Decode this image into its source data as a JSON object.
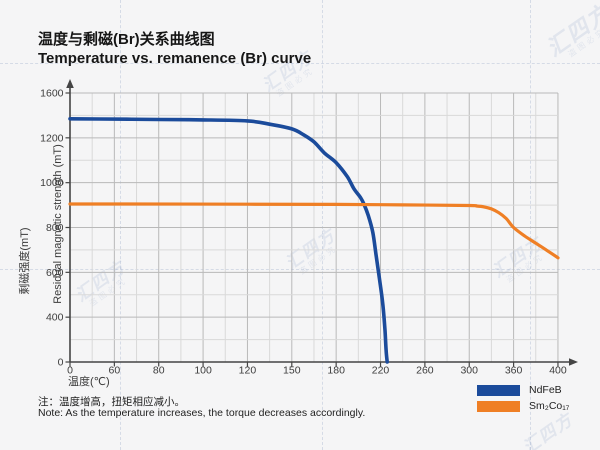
{
  "header": {
    "title_zh": "温度与剩磁(Br)关系曲线图",
    "title_en": "Temperature vs. remanence (Br) curve"
  },
  "watermark": {
    "logo": "汇四方",
    "small": "盗图必究"
  },
  "notes": {
    "zh": "注：温度增高，扭矩相应减小。",
    "en": "Note: As the temperature increases, the torque decreases accordingly."
  },
  "colors": {
    "ndfeb_blue": "#1b4b9b",
    "smco_orange": "#ef7f25",
    "axis": "#454545",
    "grid_major": "#b9b9b9",
    "grid_minor": "#d9d9d9",
    "tick_text": "#3d3d3d"
  },
  "legend": [
    {
      "label": "NdFeB",
      "color": "#1b4b9b"
    },
    {
      "label": "Sm₂Co₁₇",
      "color": "#ef7f25"
    }
  ],
  "chart_data": {
    "type": "line",
    "title": "温度与剩磁(Br)关系曲线图 / Temperature vs. remanence (Br) curve",
    "xlabel": "温度(℃)",
    "ylabel_zh": "剩磁强度(mT)",
    "ylabel_en": "Residual magnetic strength (mT)",
    "x_tick_labels": [
      "0",
      "60",
      "80",
      "100",
      "120",
      "150",
      "180",
      "220",
      "260",
      "300",
      "360",
      "400"
    ],
    "x_tick_values": [
      0,
      60,
      80,
      100,
      120,
      150,
      180,
      220,
      260,
      300,
      360,
      400
    ],
    "y_tick_labels": [
      "1600",
      "1200",
      "1000",
      "800",
      "600",
      "400",
      "0"
    ],
    "y_tick_values": [
      1600,
      1200,
      1000,
      800,
      600,
      400,
      0
    ],
    "axis_note": "both axes drawn with equally-spaced ticks (non-linear scale)",
    "grid": true,
    "legend_position": "bottom-right",
    "series": [
      {
        "name": "NdFeB",
        "color": "#1b4b9b",
        "points": [
          [
            0,
            1370
          ],
          [
            40,
            1368
          ],
          [
            80,
            1364
          ],
          [
            100,
            1360
          ],
          [
            120,
            1351
          ],
          [
            135,
            1322
          ],
          [
            150,
            1280
          ],
          [
            158,
            1227
          ],
          [
            165,
            1182
          ],
          [
            172,
            1133
          ],
          [
            180,
            1089
          ],
          [
            190,
            1027
          ],
          [
            196,
            973
          ],
          [
            202,
            933
          ],
          [
            205,
            905
          ],
          [
            209,
            853
          ],
          [
            213,
            778
          ],
          [
            216,
            676
          ],
          [
            219,
            573
          ],
          [
            222,
            462
          ],
          [
            224,
            284
          ],
          [
            225,
            107
          ],
          [
            226,
            0
          ]
        ]
      },
      {
        "name": "Sm2Co17",
        "display": "Sm₂Co₁₇",
        "color": "#ef7f25",
        "points": [
          [
            0,
            905
          ],
          [
            60,
            905
          ],
          [
            120,
            904
          ],
          [
            180,
            903
          ],
          [
            240,
            901
          ],
          [
            300,
            898
          ],
          [
            310,
            896
          ],
          [
            320,
            892
          ],
          [
            330,
            883
          ],
          [
            340,
            866
          ],
          [
            350,
            840
          ],
          [
            360,
            800
          ],
          [
            370,
            762
          ],
          [
            380,
            730
          ],
          [
            390,
            698
          ],
          [
            400,
            665
          ]
        ]
      }
    ]
  }
}
